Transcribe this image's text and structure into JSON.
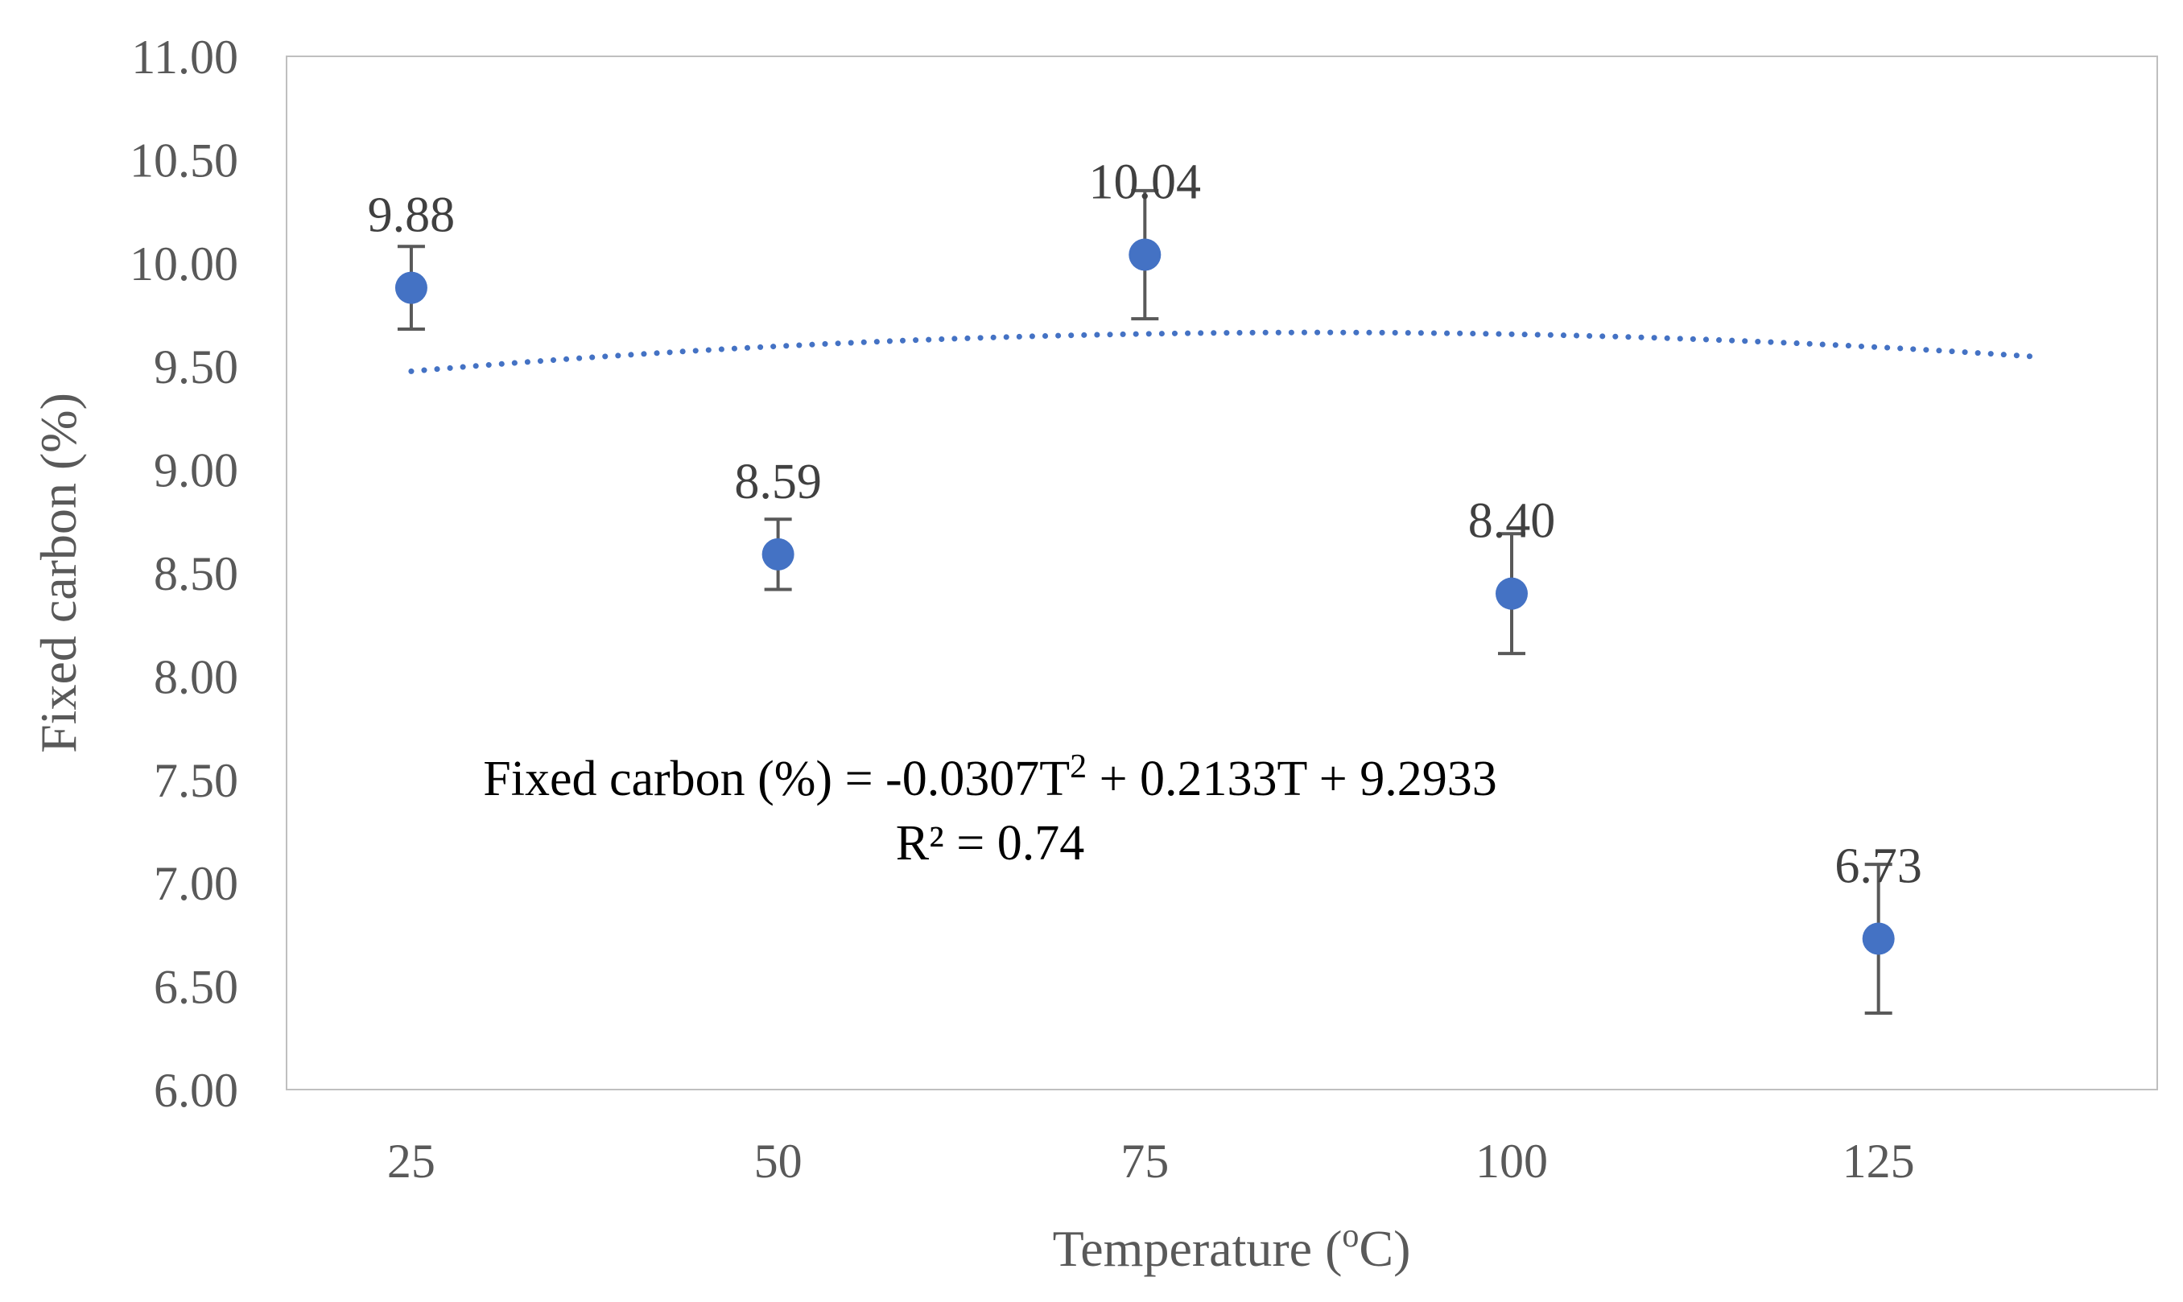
{
  "chart_data": {
    "type": "scatter",
    "title": "",
    "xlabel_main": "Temperature (",
    "xlabel_sup": "o",
    "xlabel_tail": "C)",
    "ylabel": "Fixed carbon (%)",
    "xlim": [
      16.5,
      144
    ],
    "ylim": [
      6.0,
      11.0
    ],
    "x_ticks": [
      25,
      50,
      75,
      100,
      125
    ],
    "x_tick_labels": [
      "25",
      "50",
      "75",
      "100",
      "125"
    ],
    "y_ticks": [
      6.0,
      6.5,
      7.0,
      7.5,
      8.0,
      8.5,
      9.0,
      9.5,
      10.0,
      10.5,
      11.0
    ],
    "y_tick_labels": [
      "6.00",
      "6.50",
      "7.00",
      "7.50",
      "8.00",
      "8.50",
      "9.00",
      "9.50",
      "10.00",
      "10.50",
      "11.00"
    ],
    "grid": false,
    "series": [
      {
        "name": "Fixed carbon",
        "color": "#4472C4",
        "x": [
          25,
          50,
          75,
          100,
          125
        ],
        "y": [
          9.88,
          8.59,
          10.04,
          8.4,
          6.73
        ],
        "error": [
          0.2,
          0.17,
          0.31,
          0.29,
          0.36
        ],
        "labels": [
          "9.88",
          "8.59",
          "10.04",
          "8.40",
          "6.73"
        ]
      }
    ],
    "trendline": {
      "type": "polynomial",
      "order": 2,
      "color": "#4472C4",
      "x_range": [
        25,
        136
      ],
      "equation_main": "Fixed carbon (%) = -0.0307T",
      "equation_sup": "2",
      "equation_tail": " + 0.2133T + 9.2933",
      "r_squared": "R² = 0.74"
    }
  }
}
